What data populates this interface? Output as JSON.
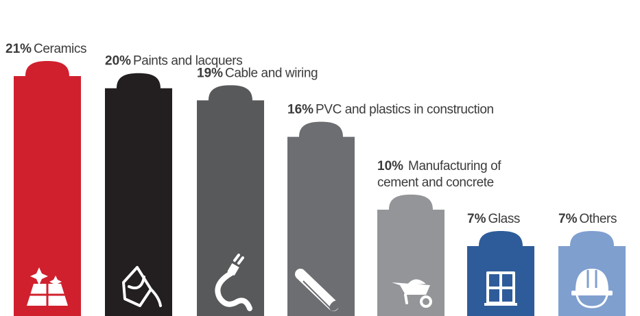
{
  "chart_data": {
    "type": "bar",
    "title": "",
    "xlabel": "",
    "ylabel": "",
    "ylim": [
      0,
      21
    ],
    "grid": false,
    "legend": "none",
    "categories": [
      "Ceramics",
      "Paints and lacquers",
      "Cable and wiring",
      "PVC and plastics in construction",
      "Manufacturing of cement and concrete",
      "Glass",
      "Others"
    ],
    "values": [
      21,
      20,
      19,
      16,
      10,
      7,
      7
    ],
    "bars": [
      {
        "pct": "21%",
        "name": "Ceramics",
        "lines": [
          "Ceramics"
        ],
        "color": "#d0202e",
        "icon": "tiles-sparkle-icon"
      },
      {
        "pct": "20%",
        "name": "Paints and lacquers",
        "lines": [
          "Paints and lacquers"
        ],
        "color": "#231f20",
        "icon": "paint-bucket-icon"
      },
      {
        "pct": "19%",
        "name": "Cable and wiring",
        "lines": [
          "Cable and wiring"
        ],
        "color": "#58595b",
        "icon": "cable-plug-icon"
      },
      {
        "pct": "16%",
        "name": "PVC and plastics in construction",
        "lines": [
          "PVC and plastics in construction"
        ],
        "color": "#6d6e71",
        "icon": "pipe-icon"
      },
      {
        "pct": "10%",
        "name": "Manufacturing of cement and concrete",
        "lines": [
          "Manufacturing of",
          "cement and concrete"
        ],
        "color": "#939598",
        "icon": "wheelbarrow-icon"
      },
      {
        "pct": "7%",
        "name": "Glass",
        "lines": [
          "Glass"
        ],
        "color": "#2e5c9a",
        "icon": "window-icon"
      },
      {
        "pct": "7%",
        "name": "Others",
        "lines": [
          "Others"
        ],
        "color": "#7f9fcf",
        "icon": "hard-hat-icon"
      }
    ]
  }
}
